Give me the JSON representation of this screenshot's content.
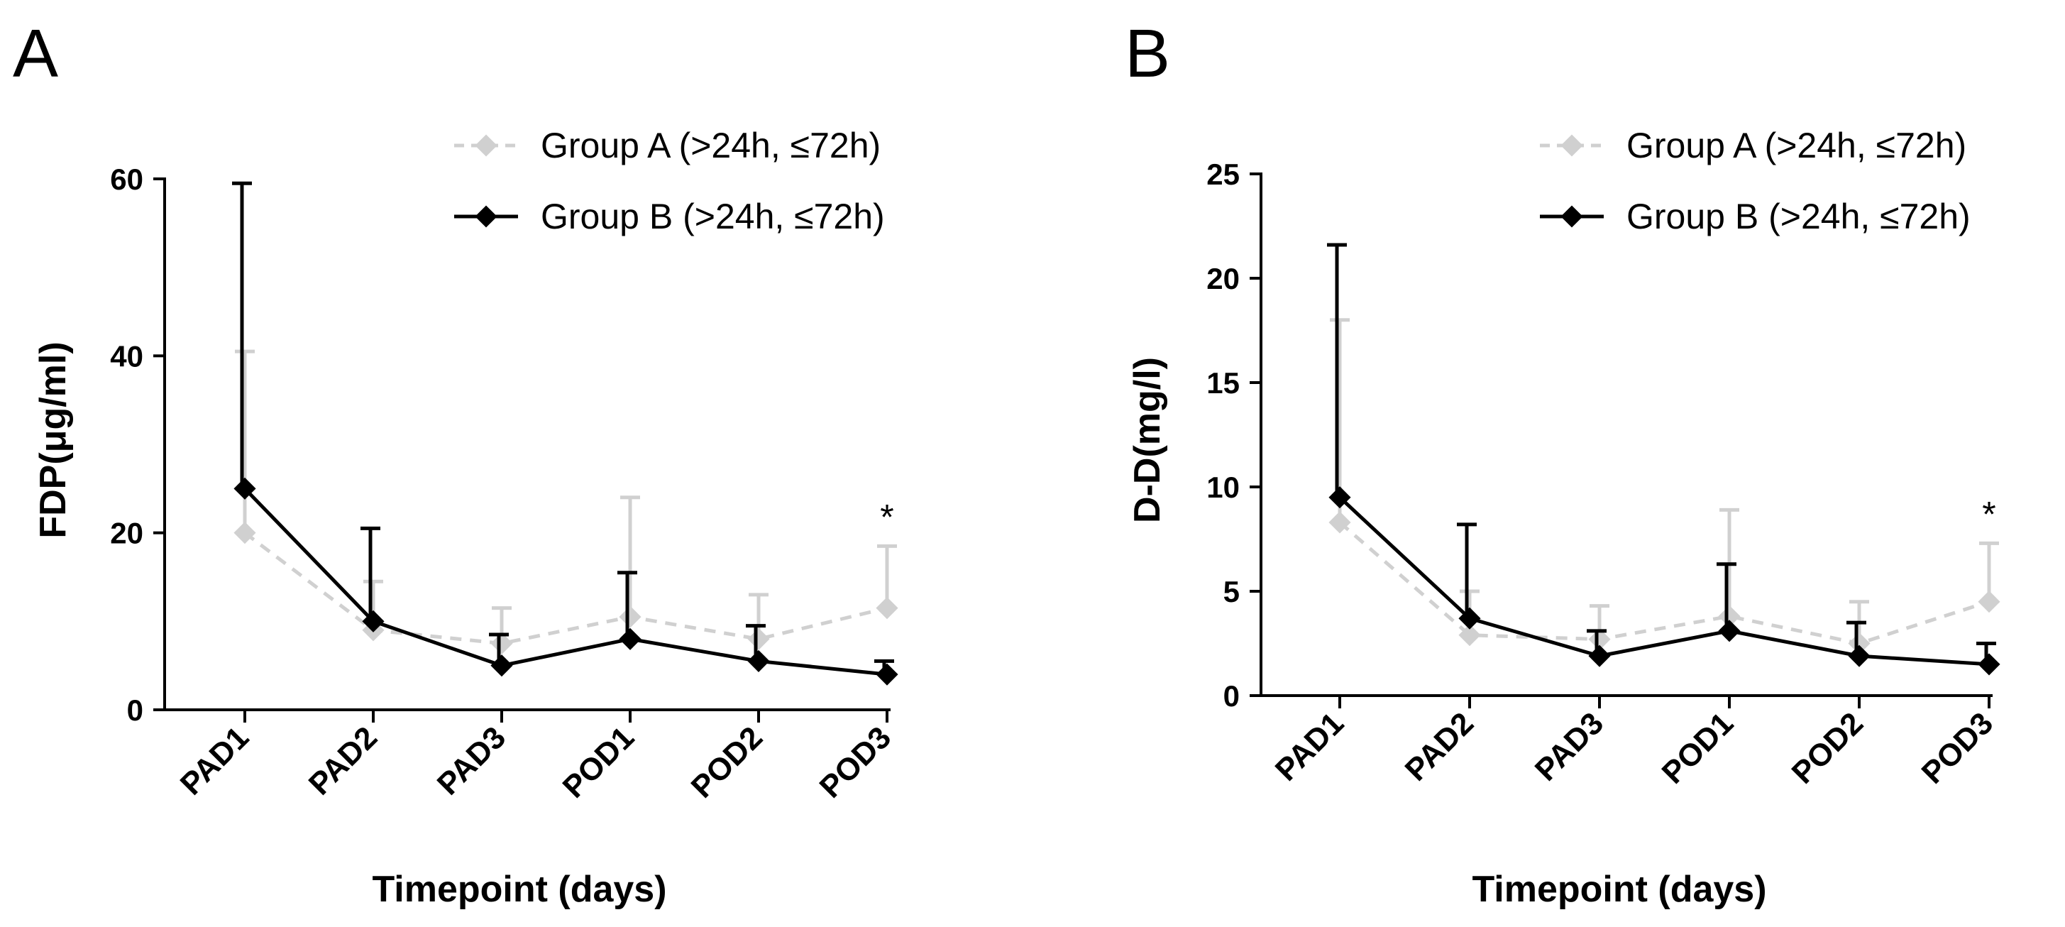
{
  "figure": {
    "colors": {
      "groupA": "#d0d0d0",
      "groupB": "#000000"
    }
  },
  "chart_data": [
    {
      "type": "line",
      "panel_label": "A",
      "title": "",
      "xlabel": "Timepoint (days)",
      "ylabel": "FDP(μg/ml)",
      "categories": [
        "PAD1",
        "PAD2",
        "PAD3",
        "POD1",
        "POD2",
        "POD3"
      ],
      "ylim": [
        0,
        60
      ],
      "yticks": [
        0,
        20,
        40,
        60
      ],
      "legend_position": "top-right",
      "series": [
        {
          "name": "Group A (>24h, ≤72h)",
          "style": "dashed",
          "values": [
            20,
            9,
            7.5,
            10.5,
            8,
            11.5
          ],
          "error": [
            20.5,
            5.5,
            4,
            13.5,
            5,
            7
          ]
        },
        {
          "name": "Group B (>24h, ≤72h)",
          "style": "solid",
          "values": [
            25,
            10,
            5,
            8,
            5.5,
            4
          ],
          "error": [
            34.5,
            10.5,
            3.5,
            7.5,
            4,
            1.5
          ]
        }
      ],
      "annotations": [
        {
          "category": "POD3",
          "text": "*"
        }
      ]
    },
    {
      "type": "line",
      "panel_label": "B",
      "title": "",
      "xlabel": "Timepoint (days)",
      "ylabel": "D-D(mg/l)",
      "categories": [
        "PAD1",
        "PAD2",
        "PAD3",
        "POD1",
        "POD2",
        "POD3"
      ],
      "ylim": [
        0,
        25
      ],
      "yticks": [
        0,
        5,
        10,
        15,
        20,
        25
      ],
      "legend_position": "top-right",
      "series": [
        {
          "name": "Group A (>24h, ≤72h)",
          "style": "dashed",
          "values": [
            8.3,
            2.9,
            2.7,
            3.8,
            2.5,
            4.5
          ],
          "error": [
            9.7,
            2.1,
            1.6,
            5.1,
            2,
            2.8
          ]
        },
        {
          "name": "Group B (>24h, ≤72h)",
          "style": "solid",
          "values": [
            9.5,
            3.7,
            1.9,
            3.1,
            1.9,
            1.5
          ],
          "error": [
            12.1,
            4.5,
            1.2,
            3.2,
            1.6,
            1
          ]
        }
      ],
      "annotations": [
        {
          "category": "POD3",
          "text": "*"
        }
      ]
    }
  ]
}
